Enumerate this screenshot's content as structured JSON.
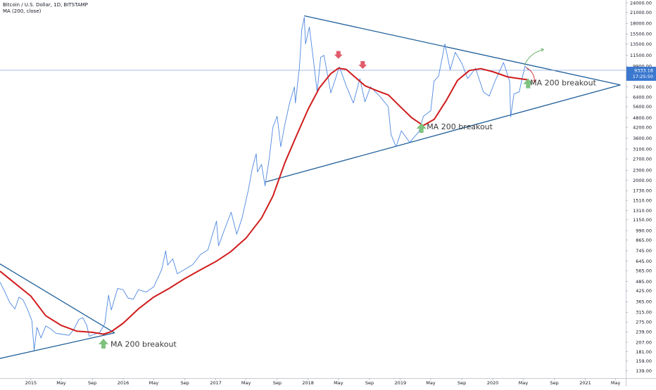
{
  "header": {
    "title": "Bitcoin / U.S. Dollar, 1D, BITSTAMP",
    "indicator": "MA (200, close)"
  },
  "price_label": {
    "value": "9333.18",
    "countdown": "17:25:50",
    "price": 9333.18
  },
  "colors": {
    "price_line": "#4f88e0",
    "ma_line": "#d01c1c",
    "trend_line": "#1f5f99",
    "price_label_bg": "#3b78cf",
    "up_arrow": "#7fc27f",
    "down_arrow": "#e05a6a",
    "scenario_up": "#5cab5c",
    "scenario_down": "#d03030"
  },
  "annotations": [
    {
      "text": "MA 200 breakout",
      "date": "2015-11-12",
      "value": 202
    },
    {
      "text": "MA 200 breakout",
      "date": "2019-04-15",
      "value": 4250
    },
    {
      "text": "MA 200 breakout",
      "date": "2020-05-28",
      "value": 7850
    }
  ],
  "chart_data": {
    "type": "line",
    "title": "Bitcoin / U.S. Dollar, 1D, BITSTAMP",
    "xlabel": "",
    "ylabel": "",
    "y_scale": "log",
    "ylim": [
      133,
      24000
    ],
    "xlim": [
      "2014-09-01",
      "2021-06-10"
    ],
    "grid": false,
    "legend": "top-left",
    "x_ticks": [
      {
        "label": "2015",
        "date": "2015-01-01"
      },
      {
        "label": "May",
        "date": "2015-05-01"
      },
      {
        "label": "Sep",
        "date": "2015-09-01"
      },
      {
        "label": "2016",
        "date": "2016-01-01"
      },
      {
        "label": "May",
        "date": "2016-05-01"
      },
      {
        "label": "Sep",
        "date": "2016-09-01"
      },
      {
        "label": "2017",
        "date": "2017-01-01"
      },
      {
        "label": "May",
        "date": "2017-05-01"
      },
      {
        "label": "Sep",
        "date": "2017-09-01"
      },
      {
        "label": "2018",
        "date": "2018-01-01"
      },
      {
        "label": "May",
        "date": "2018-05-01"
      },
      {
        "label": "Sep",
        "date": "2018-09-01"
      },
      {
        "label": "2019",
        "date": "2019-01-01"
      },
      {
        "label": "May",
        "date": "2019-05-01"
      },
      {
        "label": "Sep",
        "date": "2019-09-01"
      },
      {
        "label": "2020",
        "date": "2020-01-01"
      },
      {
        "label": "May",
        "date": "2020-05-01"
      },
      {
        "label": "Sep",
        "date": "2020-09-01"
      },
      {
        "label": "2021",
        "date": "2021-01-01"
      },
      {
        "label": "May",
        "date": "2021-05-01"
      }
    ],
    "y_ticks": [
      {
        "label": "24000.00",
        "value": 24000
      },
      {
        "label": "21000.00",
        "value": 21000
      },
      {
        "label": "18000.00",
        "value": 18000
      },
      {
        "label": "15500.00",
        "value": 15500
      },
      {
        "label": "13500.00",
        "value": 13500
      },
      {
        "label": "11500.00",
        "value": 11500
      },
      {
        "label": "9900.00",
        "value": 9900
      },
      {
        "label": "8600.00",
        "value": 8600
      },
      {
        "label": "7400.00",
        "value": 7400
      },
      {
        "label": "6400.00",
        "value": 6400
      },
      {
        "label": "5600.00",
        "value": 5600
      },
      {
        "label": "4800.00",
        "value": 4800
      },
      {
        "label": "4200.00",
        "value": 4200
      },
      {
        "label": "3600.00",
        "value": 3600
      },
      {
        "label": "3100.00",
        "value": 3100
      },
      {
        "label": "2700.00",
        "value": 2700
      },
      {
        "label": "2300.00",
        "value": 2300
      },
      {
        "label": "2000.00",
        "value": 2000
      },
      {
        "label": "1730.00",
        "value": 1730
      },
      {
        "label": "1510.00",
        "value": 1510
      },
      {
        "label": "1310.00",
        "value": 1310
      },
      {
        "label": "1150.00",
        "value": 1150
      },
      {
        "label": "990.00",
        "value": 990
      },
      {
        "label": "865.00",
        "value": 865
      },
      {
        "label": "745.00",
        "value": 745
      },
      {
        "label": "645.00",
        "value": 645
      },
      {
        "label": "565.00",
        "value": 565
      },
      {
        "label": "485.00",
        "value": 485
      },
      {
        "label": "425.00",
        "value": 425
      },
      {
        "label": "365.00",
        "value": 365
      },
      {
        "label": "315.00",
        "value": 315
      },
      {
        "label": "275.00",
        "value": 275
      },
      {
        "label": "239.00",
        "value": 239
      },
      {
        "label": "207.00",
        "value": 207
      },
      {
        "label": "181.00",
        "value": 181
      },
      {
        "label": "159.00",
        "value": 159
      },
      {
        "label": "139.00",
        "value": 139
      }
    ],
    "series": [
      {
        "name": "Bitcoin / U.S. Dollar, 1D, BITSTAMP",
        "points": [
          [
            "2014-09-01",
            480
          ],
          [
            "2014-09-20",
            420
          ],
          [
            "2014-10-10",
            360
          ],
          [
            "2014-10-30",
            330
          ],
          [
            "2014-11-15",
            390
          ],
          [
            "2014-12-01",
            375
          ],
          [
            "2014-12-20",
            325
          ],
          [
            "2015-01-05",
            280
          ],
          [
            "2015-01-14",
            185
          ],
          [
            "2015-01-25",
            255
          ],
          [
            "2015-02-10",
            220
          ],
          [
            "2015-03-01",
            260
          ],
          [
            "2015-03-20",
            250
          ],
          [
            "2015-04-10",
            235
          ],
          [
            "2015-05-01",
            232
          ],
          [
            "2015-06-01",
            228
          ],
          [
            "2015-06-20",
            248
          ],
          [
            "2015-07-10",
            285
          ],
          [
            "2015-07-25",
            292
          ],
          [
            "2015-08-10",
            262
          ],
          [
            "2015-08-20",
            225
          ],
          [
            "2015-09-10",
            232
          ],
          [
            "2015-10-01",
            238
          ],
          [
            "2015-10-20",
            268
          ],
          [
            "2015-11-04",
            400
          ],
          [
            "2015-11-15",
            325
          ],
          [
            "2015-12-10",
            440
          ],
          [
            "2016-01-01",
            432
          ],
          [
            "2016-01-20",
            385
          ],
          [
            "2016-02-10",
            378
          ],
          [
            "2016-03-01",
            432
          ],
          [
            "2016-04-01",
            418
          ],
          [
            "2016-05-01",
            450
          ],
          [
            "2016-06-01",
            570
          ],
          [
            "2016-06-17",
            745
          ],
          [
            "2016-06-25",
            610
          ],
          [
            "2016-07-15",
            665
          ],
          [
            "2016-08-02",
            540
          ],
          [
            "2016-09-01",
            575
          ],
          [
            "2016-10-01",
            612
          ],
          [
            "2016-11-01",
            705
          ],
          [
            "2016-12-01",
            755
          ],
          [
            "2017-01-04",
            1130
          ],
          [
            "2017-01-12",
            800
          ],
          [
            "2017-02-01",
            970
          ],
          [
            "2017-03-03",
            1280
          ],
          [
            "2017-03-25",
            940
          ],
          [
            "2017-04-15",
            1180
          ],
          [
            "2017-05-10",
            1750
          ],
          [
            "2017-05-25",
            2350
          ],
          [
            "2017-06-10",
            2900
          ],
          [
            "2017-06-15",
            2250
          ],
          [
            "2017-07-01",
            2500
          ],
          [
            "2017-07-15",
            1850
          ],
          [
            "2017-08-01",
            2750
          ],
          [
            "2017-08-15",
            4200
          ],
          [
            "2017-09-01",
            4900
          ],
          [
            "2017-09-15",
            3200
          ],
          [
            "2017-10-01",
            4350
          ],
          [
            "2017-10-20",
            5900
          ],
          [
            "2017-11-08",
            7400
          ],
          [
            "2017-11-12",
            5900
          ],
          [
            "2017-11-28",
            9800
          ],
          [
            "2017-12-07",
            16500
          ],
          [
            "2017-12-17",
            19600
          ],
          [
            "2017-12-22",
            13500
          ],
          [
            "2018-01-06",
            17100
          ],
          [
            "2018-01-20",
            11500
          ],
          [
            "2018-02-06",
            6900
          ],
          [
            "2018-02-20",
            11200
          ],
          [
            "2018-03-05",
            11500
          ],
          [
            "2018-04-01",
            6800
          ],
          [
            "2018-05-05",
            9800
          ],
          [
            "2018-06-01",
            7500
          ],
          [
            "2018-06-29",
            5900
          ],
          [
            "2018-07-25",
            8300
          ],
          [
            "2018-08-14",
            6000
          ],
          [
            "2018-09-05",
            7400
          ],
          [
            "2018-10-15",
            6400
          ],
          [
            "2018-11-14",
            5600
          ],
          [
            "2018-11-25",
            3800
          ],
          [
            "2018-12-15",
            3200
          ],
          [
            "2019-01-05",
            4000
          ],
          [
            "2019-02-07",
            3400
          ],
          [
            "2019-03-15",
            3950
          ],
          [
            "2019-04-02",
            4900
          ],
          [
            "2019-05-01",
            5300
          ],
          [
            "2019-05-14",
            8000
          ],
          [
            "2019-06-01",
            8600
          ],
          [
            "2019-06-26",
            13500
          ],
          [
            "2019-07-17",
            9400
          ],
          [
            "2019-08-06",
            12000
          ],
          [
            "2019-09-01",
            10300
          ],
          [
            "2019-09-24",
            8300
          ],
          [
            "2019-10-25",
            9600
          ],
          [
            "2019-11-25",
            6900
          ],
          [
            "2019-12-18",
            6500
          ],
          [
            "2020-01-10",
            8000
          ],
          [
            "2020-02-13",
            10400
          ],
          [
            "2020-03-08",
            8000
          ],
          [
            "2020-03-12",
            4850
          ],
          [
            "2020-03-25",
            6700
          ],
          [
            "2020-04-15",
            6900
          ],
          [
            "2020-04-30",
            8800
          ],
          [
            "2020-05-08",
            9900
          ],
          [
            "2020-05-22",
            9333.18
          ]
        ]
      },
      {
        "name": "MA (200, close)",
        "points": [
          [
            "2014-09-01",
            560
          ],
          [
            "2014-11-01",
            470
          ],
          [
            "2015-01-01",
            395
          ],
          [
            "2015-03-01",
            300
          ],
          [
            "2015-05-01",
            262
          ],
          [
            "2015-07-01",
            242
          ],
          [
            "2015-09-01",
            238
          ],
          [
            "2015-10-15",
            232
          ],
          [
            "2015-11-15",
            240
          ],
          [
            "2016-01-01",
            270
          ],
          [
            "2016-03-01",
            330
          ],
          [
            "2016-05-01",
            390
          ],
          [
            "2016-07-01",
            440
          ],
          [
            "2016-09-01",
            505
          ],
          [
            "2016-11-01",
            570
          ],
          [
            "2017-01-01",
            640
          ],
          [
            "2017-03-01",
            735
          ],
          [
            "2017-05-01",
            890
          ],
          [
            "2017-07-01",
            1180
          ],
          [
            "2017-08-15",
            1600
          ],
          [
            "2017-10-01",
            2550
          ],
          [
            "2017-11-15",
            3700
          ],
          [
            "2018-01-01",
            5400
          ],
          [
            "2018-02-15",
            7300
          ],
          [
            "2018-04-01",
            8900
          ],
          [
            "2018-05-01",
            9600
          ],
          [
            "2018-06-01",
            9450
          ],
          [
            "2018-07-01",
            8600
          ],
          [
            "2018-08-15",
            7500
          ],
          [
            "2018-10-01",
            7000
          ],
          [
            "2018-11-15",
            6600
          ],
          [
            "2019-01-01",
            5600
          ],
          [
            "2019-02-15",
            4800
          ],
          [
            "2019-04-01",
            4300
          ],
          [
            "2019-05-15",
            4700
          ],
          [
            "2019-07-01",
            6100
          ],
          [
            "2019-08-15",
            8100
          ],
          [
            "2019-10-01",
            9300
          ],
          [
            "2019-11-15",
            9550
          ],
          [
            "2020-01-01",
            9150
          ],
          [
            "2020-03-01",
            8500
          ],
          [
            "2020-05-22",
            8150
          ]
        ]
      }
    ],
    "trendlines": [
      {
        "name": "triangle-2014-upper",
        "from": [
          "2014-09-01",
          620
        ],
        "to": [
          "2015-11-28",
          236
        ]
      },
      {
        "name": "triangle-2014-lower",
        "from": [
          "2014-09-01",
          165
        ],
        "to": [
          "2015-11-28",
          236
        ]
      },
      {
        "name": "triangle-2018-upper",
        "from": [
          "2017-12-17",
          20000
        ],
        "to": [
          "2021-05-20",
          7600
        ]
      },
      {
        "name": "triangle-2018-lower",
        "from": [
          "2017-07-15",
          1950
        ],
        "to": [
          "2021-05-20",
          7600
        ]
      },
      {
        "name": "last-price-line",
        "from": [
          "2014-09-01",
          9333.18
        ],
        "to": [
          "2021-06-10",
          9333.18
        ]
      }
    ],
    "scenarios": [
      {
        "name": "scenario-up",
        "from": [
          "2020-05-05",
          10000
        ],
        "to": [
          "2020-07-20",
          12500
        ]
      },
      {
        "name": "scenario-down",
        "from": [
          "2020-05-12",
          9700
        ],
        "to": [
          "2020-06-15",
          7900
        ]
      }
    ],
    "markers": [
      {
        "name": "down-arrow",
        "date": "2018-05-01",
        "value": 11300
      },
      {
        "name": "down-arrow",
        "date": "2018-08-05",
        "value": 9800
      },
      {
        "name": "up-arrow",
        "date": "2015-10-15",
        "value": 205
      },
      {
        "name": "up-arrow",
        "date": "2019-03-25",
        "value": 4200
      },
      {
        "name": "up-arrow",
        "date": "2020-05-20",
        "value": 7850
      }
    ]
  }
}
